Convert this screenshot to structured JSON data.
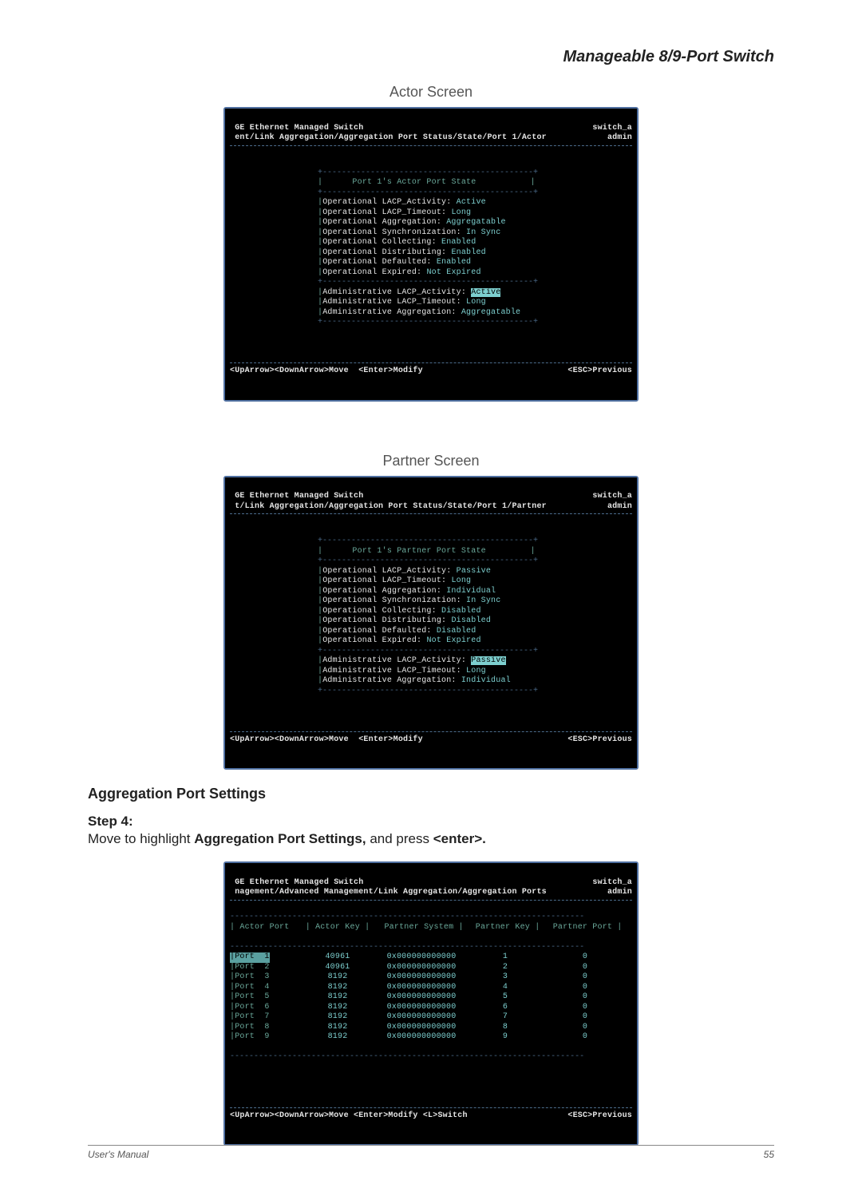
{
  "header": {
    "title": "Manageable 8/9-Port Switch"
  },
  "captions": {
    "actor": "Actor Screen",
    "partner": "Partner Screen"
  },
  "actor_screen": {
    "top_left1": " GE Ethernet Managed Switch",
    "top_left2": " ent/Link Aggregation/Aggregation Port Status/State/Port 1/Actor",
    "top_right1": "switch_a",
    "top_right2": "admin",
    "box_title": "Port 1's Actor Port State",
    "rows": [
      {
        "label": "Operational LACP_Activity:",
        "value": "Active"
      },
      {
        "label": "Operational LACP_Timeout:",
        "value": "Long"
      },
      {
        "label": "Operational Aggregation:",
        "value": "Aggregatable"
      },
      {
        "label": "Operational Synchronization:",
        "value": "In Sync"
      },
      {
        "label": "Operational Collecting:",
        "value": "Enabled"
      },
      {
        "label": "Operational Distributing:",
        "value": "Enabled"
      },
      {
        "label": "Operational Defaulted:",
        "value": "Enabled"
      },
      {
        "label": "Operational Expired:",
        "value": "Not Expired"
      }
    ],
    "admin_rows": [
      {
        "label": "Administrative LACP_Activity:",
        "value": "Active",
        "highlight": true
      },
      {
        "label": "Administrative LACP_Timeout:",
        "value": "Long"
      },
      {
        "label": "Administrative Aggregation:",
        "value": "Aggregatable"
      }
    ],
    "foot_left": "<UpArrow><DownArrow>Move  <Enter>Modify",
    "foot_right": "<ESC>Previous"
  },
  "partner_screen": {
    "top_left1": " GE Ethernet Managed Switch",
    "top_left2": " t/Link Aggregation/Aggregation Port Status/State/Port 1/Partner",
    "top_right1": "switch_a",
    "top_right2": "admin",
    "box_title": "Port 1's Partner Port State",
    "rows": [
      {
        "label": "Operational LACP_Activity:",
        "value": "Passive"
      },
      {
        "label": "Operational LACP_Timeout:",
        "value": "Long"
      },
      {
        "label": "Operational Aggregation:",
        "value": "Individual"
      },
      {
        "label": "Operational Synchronization:",
        "value": "In Sync"
      },
      {
        "label": "Operational Collecting:",
        "value": "Disabled"
      },
      {
        "label": "Operational Distributing:",
        "value": "Disabled"
      },
      {
        "label": "Operational Defaulted:",
        "value": "Disabled"
      },
      {
        "label": "Operational Expired:",
        "value": "Not Expired"
      }
    ],
    "admin_rows": [
      {
        "label": "Administrative LACP_Activity:",
        "value": "Passive",
        "highlight": true
      },
      {
        "label": "Administrative LACP_Timeout:",
        "value": "Long"
      },
      {
        "label": "Administrative Aggregation:",
        "value": "Individual"
      }
    ],
    "foot_left": "<UpArrow><DownArrow>Move  <Enter>Modify",
    "foot_right": "<ESC>Previous"
  },
  "section": {
    "heading": "Aggregation Port Settings",
    "step_label": "Step 4:",
    "body_pre": "Move to highlight ",
    "body_bold": "Aggregation Port Settings,",
    "body_mid": " and press ",
    "body_bold2": "<enter>.",
    "body_post": ""
  },
  "ports_screen": {
    "top_left1": " GE Ethernet Managed Switch",
    "top_left2": " nagement/Advanced Management/Link Aggregation/Aggregation Ports",
    "top_right1": "switch_a",
    "top_right2": "admin",
    "columns": [
      "Actor Port",
      "Actor Key",
      "Partner System",
      "Partner Key",
      "Partner Port"
    ],
    "rows": [
      {
        "port": "Port  1",
        "akey": "40961",
        "psys": "0x000000000000",
        "pkey": "1",
        "pport": "0",
        "sel": true
      },
      {
        "port": "Port  2",
        "akey": "40961",
        "psys": "0x000000000000",
        "pkey": "2",
        "pport": "0"
      },
      {
        "port": "Port  3",
        "akey": "8192",
        "psys": "0x000000000000",
        "pkey": "3",
        "pport": "0"
      },
      {
        "port": "Port  4",
        "akey": "8192",
        "psys": "0x000000000000",
        "pkey": "4",
        "pport": "0"
      },
      {
        "port": "Port  5",
        "akey": "8192",
        "psys": "0x000000000000",
        "pkey": "5",
        "pport": "0"
      },
      {
        "port": "Port  6",
        "akey": "8192",
        "psys": "0x000000000000",
        "pkey": "6",
        "pport": "0"
      },
      {
        "port": "Port  7",
        "akey": "8192",
        "psys": "0x000000000000",
        "pkey": "7",
        "pport": "0"
      },
      {
        "port": "Port  8",
        "akey": "8192",
        "psys": "0x000000000000",
        "pkey": "8",
        "pport": "0"
      },
      {
        "port": "Port  9",
        "akey": "8192",
        "psys": "0x000000000000",
        "pkey": "9",
        "pport": "0"
      }
    ],
    "foot_left": "<UpArrow><DownArrow>Move <Enter>Modify <L>Switch",
    "foot_right": "<ESC>Previous"
  },
  "footer": {
    "left": "User's Manual",
    "page": "55"
  },
  "dashes": "--------------------------------------------------------------------------"
}
